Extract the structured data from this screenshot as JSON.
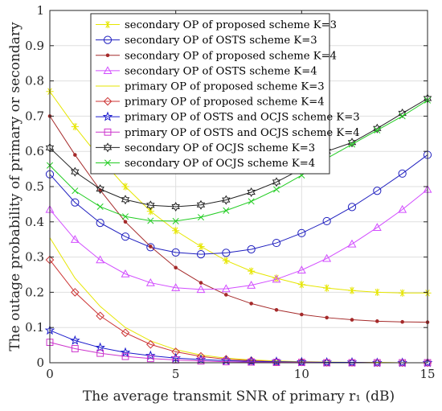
{
  "chart_data": {
    "type": "line",
    "xlabel": "The average transmit SNR of primary r₁ (dB)",
    "ylabel": "The outage probability of primary or secondary",
    "x": [
      0,
      1,
      2,
      3,
      4,
      5,
      6,
      7,
      8,
      9,
      10,
      11,
      12,
      13,
      14,
      15
    ],
    "xlim": [
      0,
      15
    ],
    "ylim": [
      0,
      1
    ],
    "xticks": [
      "0",
      "5",
      "10",
      "15"
    ],
    "yticks": [
      "0",
      "0.1",
      "0.2",
      "0.3",
      "0.4",
      "0.5",
      "0.6",
      "0.7",
      "0.8",
      "0.9",
      "1"
    ],
    "grid": true,
    "legend_position": "top-center",
    "series": [
      {
        "name": "secondary OP of proposed scheme K=3",
        "color": "#e6e600",
        "marker": "asterisk",
        "line": true,
        "values": [
          0.77,
          0.67,
          0.58,
          0.5,
          0.43,
          0.375,
          0.33,
          0.29,
          0.26,
          0.24,
          0.222,
          0.212,
          0.205,
          0.2,
          0.198,
          0.198
        ]
      },
      {
        "name": "secondary OP of OSTS scheme K=3",
        "color": "#1f1fbf",
        "marker": "circle",
        "line": true,
        "values": [
          0.535,
          0.455,
          0.397,
          0.358,
          0.328,
          0.313,
          0.308,
          0.312,
          0.322,
          0.34,
          0.368,
          0.402,
          0.442,
          0.488,
          0.537,
          0.59
        ]
      },
      {
        "name": "secondary OP of proposed scheme K=4",
        "color": "#a52a2a",
        "marker": "dot",
        "line": true,
        "values": [
          0.7,
          0.59,
          0.49,
          0.4,
          0.33,
          0.27,
          0.227,
          0.193,
          0.168,
          0.15,
          0.137,
          0.128,
          0.122,
          0.118,
          0.116,
          0.115
        ]
      },
      {
        "name": "secondary OP of OSTS scheme K=4",
        "color": "#d24dff",
        "marker": "triangle",
        "line": true,
        "values": [
          0.435,
          0.35,
          0.292,
          0.252,
          0.227,
          0.213,
          0.208,
          0.21,
          0.22,
          0.237,
          0.263,
          0.296,
          0.337,
          0.384,
          0.435,
          0.492
        ]
      },
      {
        "name": "primary OP of proposed scheme K=3",
        "color": "#e6e600",
        "marker": "none",
        "line": true,
        "values": [
          0.355,
          0.24,
          0.16,
          0.1,
          0.062,
          0.037,
          0.022,
          0.013,
          0.008,
          0.005,
          0.003,
          0.002,
          0.001,
          0.001,
          0.0,
          0.0
        ]
      },
      {
        "name": "primary OP of proposed scheme K=4",
        "color": "#cc3333",
        "marker": "diamond",
        "line": true,
        "values": [
          0.292,
          0.2,
          0.133,
          0.085,
          0.052,
          0.031,
          0.018,
          0.01,
          0.006,
          0.003,
          0.002,
          0.001,
          0.001,
          0.0,
          0.0,
          0.0
        ]
      },
      {
        "name": "primary OP of OSTS and OCJS scheme K=3",
        "color": "#1a1acc",
        "marker": "star",
        "line": true,
        "values": [
          0.092,
          0.063,
          0.043,
          0.029,
          0.02,
          0.013,
          0.009,
          0.006,
          0.004,
          0.003,
          0.002,
          0.001,
          0.001,
          0.0,
          0.0,
          0.0
        ]
      },
      {
        "name": "primary OP of OSTS and OCJS scheme K=4",
        "color": "#cc33cc",
        "marker": "square",
        "line": true,
        "values": [
          0.058,
          0.04,
          0.027,
          0.018,
          0.012,
          0.008,
          0.005,
          0.003,
          0.002,
          0.001,
          0.001,
          0.0,
          0.0,
          0.0,
          0.0,
          0.0
        ]
      },
      {
        "name": "secondary OP of OCJS scheme K=3",
        "color": "#222222",
        "marker": "hexagram",
        "line": true,
        "values": [
          0.61,
          0.542,
          0.493,
          0.463,
          0.447,
          0.443,
          0.448,
          0.462,
          0.484,
          0.513,
          0.55,
          0.6,
          0.625,
          0.665,
          0.708,
          0.75
        ]
      },
      {
        "name": "secondary OP of OCJS scheme K=4",
        "color": "#22cc22",
        "marker": "x",
        "line": true,
        "values": [
          0.56,
          0.488,
          0.443,
          0.415,
          0.403,
          0.402,
          0.413,
          0.432,
          0.458,
          0.492,
          0.532,
          0.58,
          0.62,
          0.66,
          0.7,
          0.745
        ]
      }
    ]
  }
}
